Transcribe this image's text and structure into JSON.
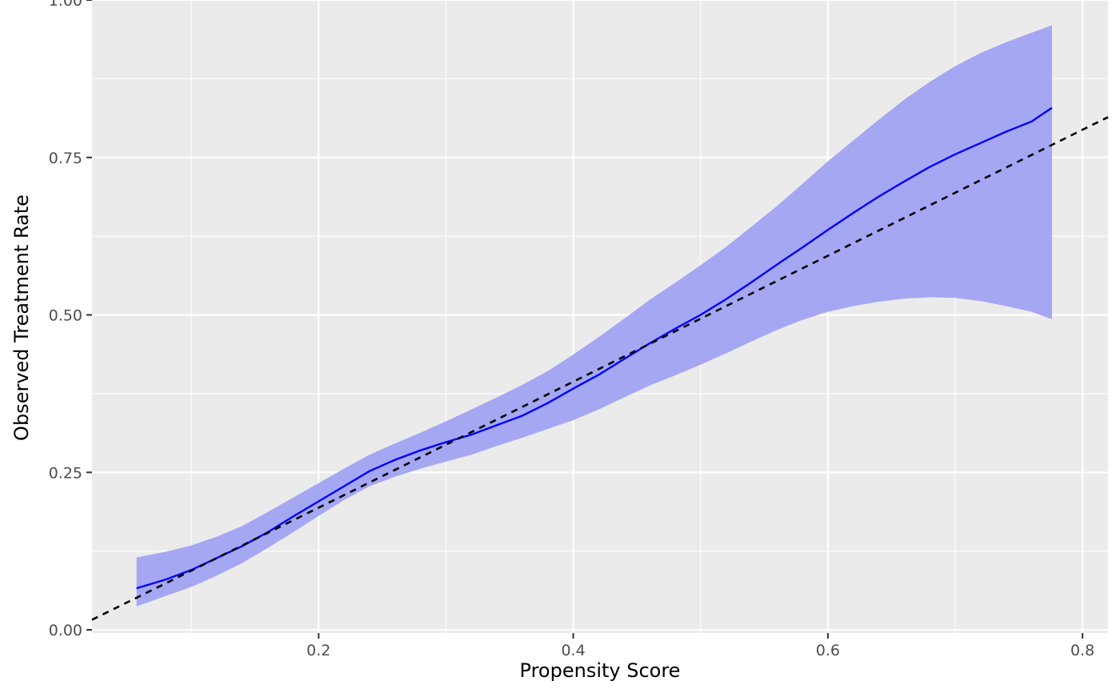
{
  "chart_data": {
    "type": "line",
    "title": "",
    "xlabel": "Propensity Score",
    "ylabel": "Observed Treatment Rate",
    "xlim": [
      0.022,
      0.82
    ],
    "ylim": [
      -0.005,
      1.0
    ],
    "x_ticks": [
      0.2,
      0.4,
      0.6,
      0.8
    ],
    "x_tick_labels": [
      "0.2",
      "0.4",
      "0.6",
      "0.8"
    ],
    "y_ticks": [
      0.0,
      0.25,
      0.5,
      0.75,
      1.0
    ],
    "y_tick_labels": [
      "0.00",
      "0.25",
      "0.50",
      "0.75",
      "1.00"
    ],
    "grid": true,
    "legend": "none",
    "series": [
      {
        "kind": "smooth",
        "color": "#0000ff",
        "points": [
          [
            0.057,
            0.066
          ],
          [
            0.08,
            0.08
          ],
          [
            0.1,
            0.095
          ],
          [
            0.12,
            0.114
          ],
          [
            0.14,
            0.133
          ],
          [
            0.16,
            0.155
          ],
          [
            0.18,
            0.18
          ],
          [
            0.2,
            0.204
          ],
          [
            0.22,
            0.228
          ],
          [
            0.24,
            0.252
          ],
          [
            0.26,
            0.27
          ],
          [
            0.28,
            0.285
          ],
          [
            0.3,
            0.298
          ],
          [
            0.32,
            0.31
          ],
          [
            0.34,
            0.325
          ],
          [
            0.36,
            0.34
          ],
          [
            0.38,
            0.36
          ],
          [
            0.4,
            0.383
          ],
          [
            0.42,
            0.405
          ],
          [
            0.44,
            0.43
          ],
          [
            0.46,
            0.455
          ],
          [
            0.48,
            0.478
          ],
          [
            0.5,
            0.5
          ],
          [
            0.52,
            0.525
          ],
          [
            0.54,
            0.552
          ],
          [
            0.56,
            0.58
          ],
          [
            0.58,
            0.607
          ],
          [
            0.6,
            0.635
          ],
          [
            0.62,
            0.662
          ],
          [
            0.64,
            0.688
          ],
          [
            0.66,
            0.712
          ],
          [
            0.68,
            0.735
          ],
          [
            0.7,
            0.755
          ],
          [
            0.72,
            0.773
          ],
          [
            0.74,
            0.791
          ],
          [
            0.76,
            0.807
          ],
          [
            0.776,
            0.829
          ]
        ],
        "ribbon": {
          "color": "#a5a7f3",
          "points": [
            [
              0.057,
              0.037,
              0.115
            ],
            [
              0.08,
              0.054,
              0.124
            ],
            [
              0.1,
              0.068,
              0.134
            ],
            [
              0.12,
              0.086,
              0.148
            ],
            [
              0.14,
              0.106,
              0.165
            ],
            [
              0.16,
              0.13,
              0.187
            ],
            [
              0.18,
              0.155,
              0.21
            ],
            [
              0.2,
              0.181,
              0.233
            ],
            [
              0.22,
              0.206,
              0.256
            ],
            [
              0.24,
              0.228,
              0.278
            ],
            [
              0.26,
              0.243,
              0.296
            ],
            [
              0.28,
              0.256,
              0.313
            ],
            [
              0.3,
              0.267,
              0.331
            ],
            [
              0.32,
              0.278,
              0.35
            ],
            [
              0.34,
              0.292,
              0.369
            ],
            [
              0.36,
              0.305,
              0.389
            ],
            [
              0.38,
              0.319,
              0.411
            ],
            [
              0.4,
              0.333,
              0.437
            ],
            [
              0.42,
              0.35,
              0.465
            ],
            [
              0.44,
              0.369,
              0.494
            ],
            [
              0.46,
              0.388,
              0.524
            ],
            [
              0.48,
              0.404,
              0.551
            ],
            [
              0.5,
              0.421,
              0.579
            ],
            [
              0.52,
              0.439,
              0.608
            ],
            [
              0.54,
              0.458,
              0.64
            ],
            [
              0.56,
              0.476,
              0.673
            ],
            [
              0.58,
              0.492,
              0.708
            ],
            [
              0.6,
              0.505,
              0.744
            ],
            [
              0.62,
              0.514,
              0.777
            ],
            [
              0.64,
              0.521,
              0.81
            ],
            [
              0.66,
              0.526,
              0.842
            ],
            [
              0.68,
              0.528,
              0.87
            ],
            [
              0.7,
              0.527,
              0.895
            ],
            [
              0.72,
              0.522,
              0.916
            ],
            [
              0.74,
              0.514,
              0.933
            ],
            [
              0.76,
              0.505,
              0.948
            ],
            [
              0.776,
              0.493,
              0.96
            ]
          ]
        }
      },
      {
        "kind": "reference",
        "color": "#000000",
        "dashed": true,
        "points": [
          [
            0.022,
            0.016
          ],
          [
            0.82,
            0.814
          ]
        ]
      }
    ]
  }
}
